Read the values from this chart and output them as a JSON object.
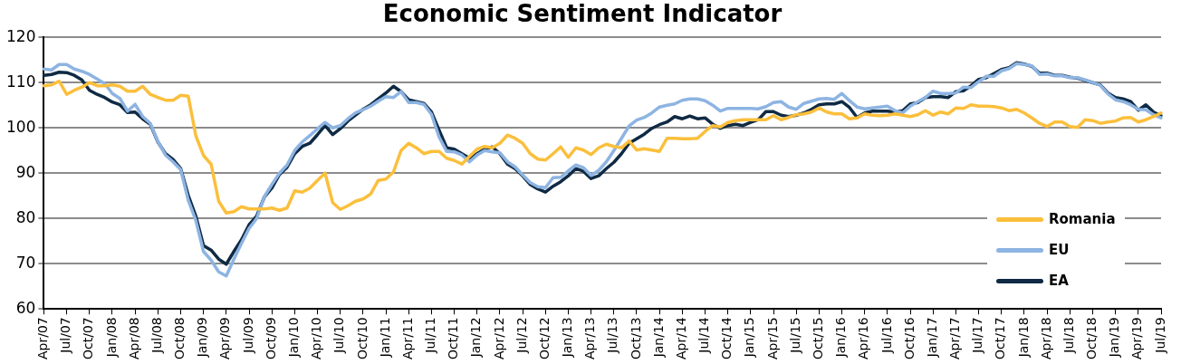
{
  "chart_data": {
    "type": "line",
    "title": "Economic Sentiment Indicator",
    "categories": [
      "Apr/07",
      null,
      null,
      "Jul/07",
      null,
      null,
      "Oct/07",
      null,
      null,
      "Jan/08",
      null,
      null,
      "Apr/08",
      null,
      null,
      "Jul/08",
      null,
      null,
      "Oct/08",
      null,
      null,
      "Jan/09",
      null,
      null,
      "Apr/09",
      null,
      null,
      "Jul/09",
      null,
      null,
      "Oct/09",
      null,
      null,
      "Jan/10",
      null,
      null,
      "Apr/10",
      null,
      null,
      "Jul/10",
      null,
      null,
      "Oct/10",
      null,
      null,
      "Jan/11",
      null,
      null,
      "Apr/11",
      null,
      null,
      "Jul/11",
      null,
      null,
      "Oct/11",
      null,
      null,
      "Jan/12",
      null,
      null,
      "Apr/12",
      null,
      null,
      "Jul/12",
      null,
      null,
      "Oct/12",
      null,
      null,
      "Jan/13",
      null,
      null,
      "Apr/13",
      null,
      null,
      "Jul/13",
      null,
      null,
      "Oct/13",
      null,
      null,
      "Jan/14",
      null,
      null,
      "Apr/14",
      null,
      null,
      "Jul/14",
      null,
      null,
      "Oct/14",
      null,
      null,
      "Jan/15",
      null,
      null,
      "Apr/15",
      null,
      null,
      "Jul/15",
      null,
      null,
      "Oct/15",
      null,
      null,
      "Jan/16",
      null,
      null,
      "Apr/16",
      null,
      null,
      "Jul/16",
      null,
      null,
      "Oct/16",
      null,
      null,
      "Jan/17",
      null,
      null,
      "Apr/17",
      null,
      null,
      "Jul/17",
      null,
      null,
      "Oct/17",
      null,
      null,
      "Jan/18",
      null,
      null,
      "Apr/18",
      null,
      null,
      "Jul/18",
      null,
      null,
      "Oct/18",
      null,
      null,
      "Jan/19",
      null,
      null,
      "Apr/19",
      null,
      null,
      "Jul/19"
    ],
    "series": [
      {
        "name": "Romania",
        "color": "#fbbf3c",
        "values": [
          109.3,
          109.5,
          110.3,
          107.4,
          108.3,
          109,
          110,
          109.3,
          109.3,
          109.5,
          109.2,
          108.1,
          108.1,
          109.2,
          107.4,
          106.7,
          106.1,
          106.1,
          107.2,
          107,
          98.2,
          93.9,
          92,
          83.8,
          81.2,
          81.5,
          82.6,
          82.1,
          82.1,
          82.1,
          82.3,
          81.8,
          82.3,
          86.1,
          85.8,
          86.7,
          88.4,
          90,
          83.5,
          82,
          82.8,
          83.8,
          84.3,
          85.4,
          88.4,
          88.7,
          90.3,
          95,
          96.6,
          95.6,
          94.3,
          94.8,
          94.8,
          93.3,
          92.8,
          92,
          93.7,
          95.3,
          95.9,
          95.6,
          96.6,
          98.4,
          97.7,
          96.6,
          94.3,
          93.1,
          92.9,
          94.3,
          95.8,
          93.5,
          95.6,
          95.1,
          94.1,
          95.6,
          96.4,
          95.9,
          95.6,
          97.1,
          95.1,
          95.4,
          95.1,
          94.8,
          97.7,
          97.7,
          97.6,
          97.6,
          97.7,
          99.2,
          100.5,
          100.2,
          101.2,
          101.6,
          101.8,
          101.8,
          101.8,
          101.8,
          102.7,
          101.8,
          102.3,
          102.9,
          103.1,
          103.5,
          104.4,
          103.5,
          103.1,
          103.1,
          102,
          102.2,
          103.1,
          102.8,
          102.7,
          102.8,
          103.1,
          102.8,
          102.5,
          102.9,
          103.8,
          102.8,
          103.5,
          103.1,
          104.4,
          104.3,
          105.1,
          104.8,
          104.8,
          104.7,
          104.4,
          103.8,
          104.1,
          103.3,
          102.2,
          101,
          100.3,
          101.3,
          101.3,
          100.3,
          100.1,
          101.8,
          101.6,
          101,
          101.3,
          101.5,
          102.2,
          102.3,
          101.3,
          101.8,
          102.5,
          103.3
        ]
      },
      {
        "name": "EU",
        "color": "#8db4e2",
        "values": [
          113,
          112.8,
          114,
          114,
          113,
          112.5,
          111.8,
          110.8,
          109.8,
          107.6,
          106.5,
          103.7,
          105.2,
          102.5,
          101,
          97,
          94,
          92.5,
          90.8,
          84,
          79.5,
          72.7,
          70.8,
          68.2,
          67.3,
          71,
          74.5,
          77.8,
          80,
          84.8,
          87.5,
          90,
          91.8,
          95,
          96.9,
          98.3,
          99.8,
          101.2,
          100,
          100.5,
          102,
          103.3,
          104,
          104.8,
          105.9,
          106.9,
          106.7,
          108,
          105.6,
          105.6,
          105.2,
          103,
          98,
          94.8,
          94.7,
          94,
          92.5,
          94,
          95,
          94.7,
          94.5,
          92.5,
          91.4,
          89.6,
          87.9,
          87,
          86.8,
          89,
          89.1,
          90.5,
          91.8,
          91.2,
          89.5,
          90.6,
          92.5,
          95,
          97.7,
          100.4,
          101.7,
          102.3,
          103.3,
          104.6,
          105,
          105.3,
          106.1,
          106.4,
          106.4,
          106,
          105,
          103.7,
          104.3,
          104.3,
          104.3,
          104.3,
          104.2,
          104.7,
          105.6,
          105.8,
          104.6,
          104.1,
          105.4,
          105.9,
          106.4,
          106.5,
          106.3,
          107.6,
          106,
          104.6,
          104.2,
          104.4,
          104.6,
          104.8,
          103.8,
          103.3,
          104.8,
          105.8,
          106.7,
          108.1,
          107.6,
          107.6,
          107.7,
          109,
          108.9,
          110.2,
          111.4,
          111.4,
          112.6,
          113.1,
          114.2,
          114,
          113.7,
          111.8,
          111.9,
          111.5,
          111.5,
          111.1,
          111.1,
          110.6,
          110,
          109.4,
          107.5,
          106.2,
          105.8,
          105.1,
          104.1,
          104,
          102.9,
          102.2
        ]
      },
      {
        "name": "EA",
        "color": "#0f2a44",
        "values": [
          111.6,
          111.8,
          112.3,
          112.2,
          111.6,
          110.6,
          108.3,
          107.4,
          106.7,
          105.7,
          105.1,
          103.4,
          103.5,
          102,
          100.8,
          96.9,
          94.3,
          93,
          91,
          85.1,
          80.5,
          74,
          73,
          71,
          69.9,
          72.7,
          75.3,
          78.6,
          80.5,
          84.7,
          86.7,
          89.7,
          91.3,
          94.3,
          95.9,
          96.6,
          98.5,
          100.5,
          98.5,
          99.8,
          101.5,
          102.8,
          104.1,
          105.1,
          106.4,
          107.7,
          109.2,
          108,
          106.2,
          105.8,
          105.4,
          103.5,
          99.5,
          95.6,
          95.3,
          94.3,
          93.3,
          94.3,
          95.3,
          95.8,
          94.3,
          92,
          91,
          89.4,
          87.5,
          86.5,
          85.8,
          87.1,
          88.1,
          89.4,
          91,
          90.4,
          88.8,
          89.4,
          91,
          92.4,
          94.3,
          96.6,
          97.6,
          98.6,
          99.9,
          100.7,
          101.3,
          102.5,
          102,
          102.6,
          102,
          102.2,
          100.8,
          99.9,
          100.5,
          100.8,
          100.5,
          101.2,
          101.8,
          103.6,
          103.6,
          102.8,
          102.5,
          102.8,
          103.3,
          104.1,
          105.1,
          105.3,
          105.3,
          105.8,
          104.5,
          102.3,
          103.3,
          103.7,
          103.7,
          103.7,
          103.5,
          103.8,
          105.3,
          105.6,
          106.7,
          106.9,
          106.9,
          106.7,
          108,
          108.2,
          109.3,
          110.7,
          111.1,
          112,
          112.9,
          113.3,
          114.4,
          114.1,
          113.6,
          112.1,
          112.1,
          111.6,
          111.6,
          111.2,
          111,
          110.5,
          110,
          109.5,
          107.7,
          106.7,
          106.4,
          105.8,
          103.9,
          105.1,
          103.5,
          102.7
        ]
      }
    ],
    "ylim": [
      60,
      120
    ],
    "yticks": [
      60,
      70,
      80,
      90,
      100,
      110,
      120
    ],
    "grid": "y",
    "legend": "bottom right",
    "line_style": "solid",
    "marker": "none"
  }
}
